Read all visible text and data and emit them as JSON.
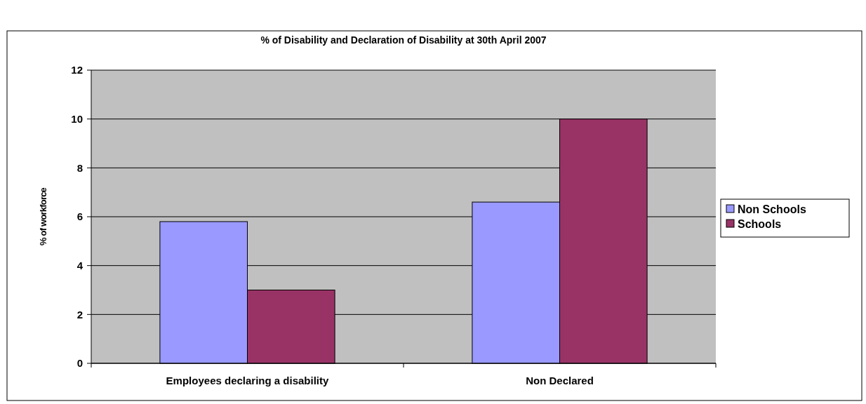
{
  "chart_data": {
    "type": "bar",
    "title": "% of Disability and Declaration of Disability at 30th April 2007",
    "ylabel": "% of workforce",
    "categories": [
      "Employees declaring a disability",
      "Non Declared"
    ],
    "series": [
      {
        "name": "Non Schools",
        "color": "#9999ff",
        "values": [
          5.8,
          6.6
        ]
      },
      {
        "name": "Schools",
        "color": "#993366",
        "values": [
          3.0,
          10.0
        ]
      }
    ],
    "ylim": [
      0,
      12
    ],
    "yticks": [
      0,
      2,
      4,
      6,
      8,
      10,
      12
    ],
    "grid": "y",
    "legend": "right"
  }
}
